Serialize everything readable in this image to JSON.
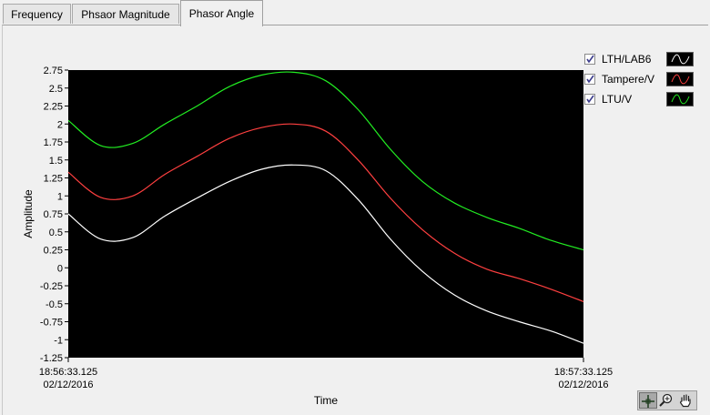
{
  "tabs": [
    {
      "label": "Frequency",
      "active": false
    },
    {
      "label": "Phsaor Magnitude",
      "active": false
    },
    {
      "label": "Phasor Angle",
      "active": true
    }
  ],
  "legend": [
    {
      "label": "LTH/LAB6",
      "checked": true,
      "color": "#ffffff"
    },
    {
      "label": "Tampere/V",
      "checked": true,
      "color": "#ff4040"
    },
    {
      "label": "LTU/V",
      "checked": true,
      "color": "#22ee22"
    }
  ],
  "tools": [
    {
      "name": "cursor-move-icon",
      "selected": true
    },
    {
      "name": "zoom-icon",
      "selected": false
    },
    {
      "name": "pan-hand-icon",
      "selected": false
    }
  ],
  "chart_data": {
    "type": "line",
    "xlabel": "Time",
    "ylabel": "Amplitude",
    "xlim": [
      "18:56:33.125 02/12/2016",
      "18:57:33.125 02/12/2016"
    ],
    "x_tick_labels": [
      {
        "time": "18:56:33.125",
        "date": "02/12/2016"
      },
      {
        "time": "18:57:33.125",
        "date": "02/12/2016"
      }
    ],
    "ylim": [
      -1.25,
      2.75
    ],
    "y_ticks": [
      "2.75",
      "2.5",
      "2.25",
      "2",
      "1.75",
      "1.5",
      "1.25",
      "1",
      "0.75",
      "0.5",
      "0.25",
      "0",
      "-0.25",
      "-0.5",
      "-0.75",
      "-1",
      "-1.25"
    ],
    "background": "#000000",
    "grid": false,
    "x_seconds_after_start": [
      0,
      3.75,
      7.5,
      11.25,
      15,
      18.75,
      22.5,
      26.25,
      30,
      33.75,
      37.5,
      41.25,
      45,
      48.75,
      52.5,
      56.25,
      60
    ],
    "series": [
      {
        "name": "LTH/LAB6",
        "color": "#ffffff",
        "values": [
          0.75,
          0.4,
          0.42,
          0.72,
          0.97,
          1.2,
          1.37,
          1.43,
          1.35,
          0.95,
          0.4,
          -0.05,
          -0.38,
          -0.6,
          -0.75,
          -0.88,
          -1.05
        ]
      },
      {
        "name": "Tampere/V",
        "color": "#ff4040",
        "values": [
          1.33,
          0.98,
          1.0,
          1.3,
          1.55,
          1.8,
          1.95,
          2.0,
          1.9,
          1.5,
          0.97,
          0.53,
          0.2,
          -0.02,
          -0.15,
          -0.3,
          -0.47
        ]
      },
      {
        "name": "LTU/V",
        "color": "#22ee22",
        "values": [
          2.05,
          1.7,
          1.73,
          2.0,
          2.25,
          2.52,
          2.68,
          2.72,
          2.6,
          2.2,
          1.65,
          1.2,
          0.9,
          0.7,
          0.55,
          0.38,
          0.25
        ]
      }
    ]
  }
}
